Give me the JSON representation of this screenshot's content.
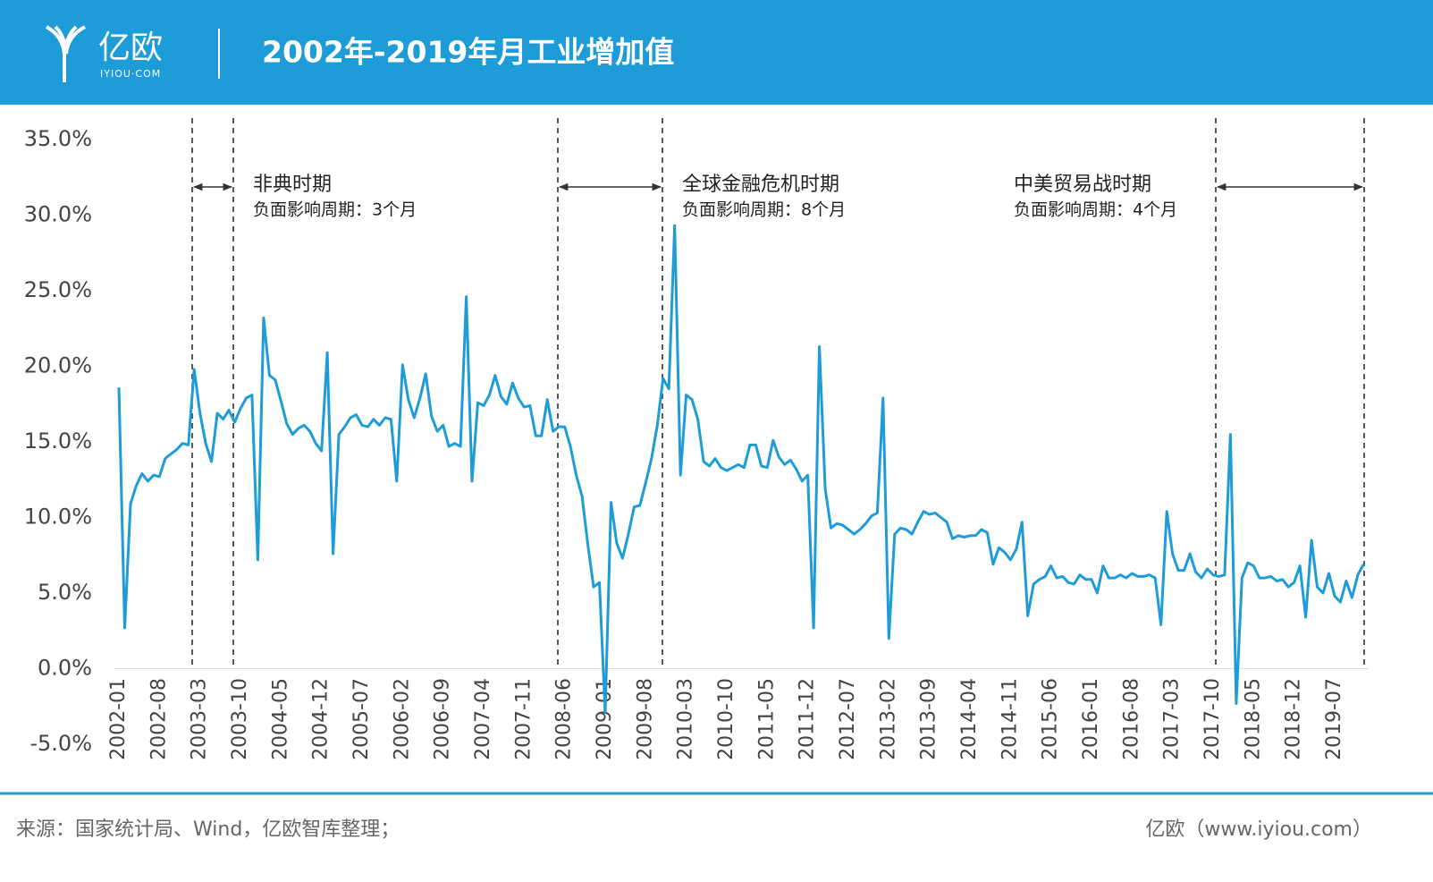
{
  "header": {
    "logo": "亿欧",
    "logo_sub": "IYIOU·COM"
  },
  "chart_data": {
    "type": "line",
    "title": "2002年-2019年月工业增加值",
    "color": "#1e9cd7",
    "categories": [
      "2002-01",
      null,
      null,
      null,
      null,
      null,
      null,
      "2002-08",
      null,
      null,
      null,
      null,
      null,
      null,
      "2003-03",
      null,
      null,
      null,
      null,
      null,
      null,
      "2003-10",
      null,
      null,
      null,
      null,
      null,
      null,
      "2004-05",
      null,
      null,
      null,
      null,
      null,
      null,
      "2004-12",
      null,
      null,
      null,
      null,
      null,
      null,
      "2005-07",
      null,
      null,
      null,
      null,
      null,
      null,
      "2006-02",
      null,
      null,
      null,
      null,
      null,
      null,
      "2006-09",
      null,
      null,
      null,
      null,
      null,
      null,
      "2007-04",
      null,
      null,
      null,
      null,
      null,
      null,
      "2007-11",
      null,
      null,
      null,
      null,
      null,
      null,
      "2008-06",
      null,
      null,
      null,
      null,
      null,
      null,
      "2009-01",
      null,
      null,
      null,
      null,
      null,
      null,
      "2009-08",
      null,
      null,
      null,
      null,
      null,
      null,
      "2010-03",
      null,
      null,
      null,
      null,
      null,
      null,
      "2010-10",
      null,
      null,
      null,
      null,
      null,
      null,
      "2011-05",
      null,
      null,
      null,
      null,
      null,
      null,
      "2011-12",
      null,
      null,
      null,
      null,
      null,
      null,
      "2012-07",
      null,
      null,
      null,
      null,
      null,
      null,
      "2013-02",
      null,
      null,
      null,
      null,
      null,
      null,
      "2013-09",
      null,
      null,
      null,
      null,
      null,
      null,
      "2014-04",
      null,
      null,
      null,
      null,
      null,
      null,
      "2014-11",
      null,
      null,
      null,
      null,
      null,
      null,
      "2015-06",
      null,
      null,
      null,
      null,
      null,
      null,
      "2016-01",
      null,
      null,
      null,
      null,
      null,
      null,
      "2016-08",
      null,
      null,
      null,
      null,
      null,
      null,
      "2017-03",
      null,
      null,
      null,
      null,
      null,
      null,
      "2017-10",
      null,
      null,
      null,
      null,
      null,
      null,
      "2018-05",
      null,
      null,
      null,
      null,
      null,
      null,
      "2018-12",
      null,
      null,
      null,
      null,
      null,
      null,
      "2019-07",
      null,
      null,
      null,
      null,
      null
    ],
    "values": [
      18.6,
      2.7,
      10.9,
      12.1,
      12.9,
      12.4,
      12.8,
      12.7,
      13.9,
      14.2,
      14.5,
      14.9,
      14.8,
      19.8,
      16.9,
      14.9,
      13.7,
      16.9,
      16.5,
      17.1,
      16.3,
      17.2,
      17.9,
      18.1,
      7.2,
      23.2,
      19.4,
      19.1,
      17.7,
      16.2,
      15.5,
      15.9,
      16.1,
      15.7,
      14.9,
      14.4,
      20.9,
      7.6,
      15.5,
      16.0,
      16.6,
      16.8,
      16.1,
      16.0,
      16.5,
      16.1,
      16.6,
      16.5,
      12.4,
      20.1,
      17.8,
      16.6,
      17.9,
      19.5,
      16.7,
      15.7,
      16.1,
      14.7,
      14.9,
      14.7,
      24.6,
      12.4,
      17.6,
      17.4,
      18.1,
      19.4,
      18.0,
      17.5,
      18.9,
      17.9,
      17.3,
      17.4,
      15.4,
      15.4,
      17.8,
      15.7,
      16.0,
      16.0,
      14.7,
      12.8,
      11.4,
      8.2,
      5.4,
      5.7,
      -2.9,
      11.0,
      8.3,
      7.3,
      8.9,
      10.7,
      10.8,
      12.3,
      13.9,
      16.1,
      19.2,
      18.5,
      29.3,
      12.8,
      18.1,
      17.8,
      16.5,
      13.7,
      13.4,
      13.9,
      13.3,
      13.1,
      13.3,
      13.5,
      13.3,
      14.8,
      14.8,
      13.4,
      13.3,
      15.1,
      14.0,
      13.5,
      13.8,
      13.2,
      12.4,
      12.8,
      2.7,
      21.3,
      11.9,
      9.3,
      9.6,
      9.5,
      9.2,
      8.9,
      9.2,
      9.6,
      10.1,
      10.3,
      17.9,
      2.0,
      8.9,
      9.3,
      9.2,
      8.9,
      9.7,
      10.4,
      10.2,
      10.3,
      10.0,
      9.7,
      8.6,
      8.8,
      8.7,
      8.8,
      8.8,
      9.2,
      9.0,
      6.9,
      8.0,
      7.7,
      7.2,
      7.9,
      9.7,
      3.5,
      5.6,
      5.9,
      6.1,
      6.8,
      6.0,
      6.1,
      5.7,
      5.6,
      6.2,
      5.9,
      5.9,
      5.0,
      6.8,
      6.0,
      6.0,
      6.2,
      6.0,
      6.3,
      6.1,
      6.1,
      6.2,
      6.0,
      2.9,
      10.4,
      7.6,
      6.5,
      6.5,
      7.6,
      6.4,
      6.0,
      6.6,
      6.2,
      6.1,
      6.2,
      15.5,
      -2.3,
      6.0,
      7.0,
      6.8,
      6.0,
      6.0,
      6.1,
      5.8,
      5.9,
      5.4,
      5.7,
      6.8,
      3.4,
      8.5,
      5.4,
      5.0,
      6.3,
      4.8,
      4.4,
      5.8,
      4.7,
      6.2,
      6.9
    ],
    "ylim": [
      -5,
      35
    ],
    "yticks": [
      {
        "value": -5,
        "label": "-5.0%"
      },
      {
        "value": 0,
        "label": "0.0%"
      },
      {
        "value": 5,
        "label": "5.0%"
      },
      {
        "value": 10,
        "label": "10.0%"
      },
      {
        "value": 15,
        "label": "15.0%"
      },
      {
        "value": 20,
        "label": "20.0%"
      },
      {
        "value": 25,
        "label": "25.0%"
      },
      {
        "value": 30,
        "label": "30.0%"
      },
      {
        "value": 35,
        "label": "35.0%"
      }
    ],
    "annotations": [
      {
        "title": "非典时期",
        "note": "负面影响周期：3个月"
      },
      {
        "title": "全球金融危机时期",
        "note": "负面影响周期：8个月"
      },
      {
        "title": "中美贸易战时期",
        "note": "负面影响周期：4个月"
      }
    ]
  },
  "footer": {
    "source": "来源：国家统计局、Wind，亿欧智库整理；",
    "site": "亿欧（www.iyiou.com）"
  }
}
